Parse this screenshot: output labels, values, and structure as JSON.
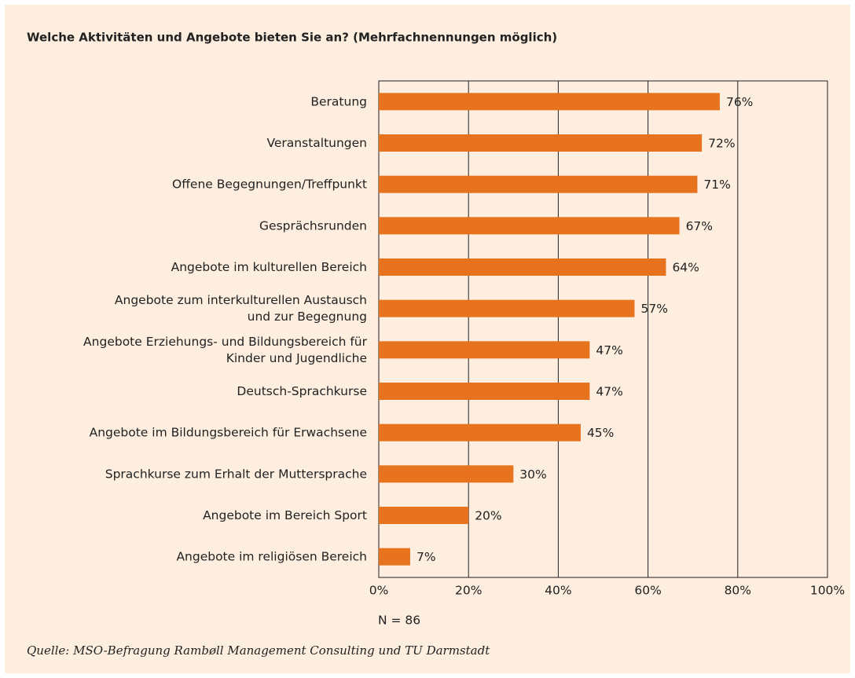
{
  "chart_data": {
    "type": "bar",
    "orientation": "horizontal",
    "title": "Welche Aktivitäten und Angebote bieten Sie an? (Mehrfachnennungen möglich)",
    "categories": [
      "Beratung",
      "Veranstaltungen",
      "Offene Begegnungen/Treffpunkt",
      "Gesprächsrunden",
      "Angebote im kulturellen Bereich",
      "Angebote zum interkulturellen Austausch\nund zur Begegnung",
      "Angebote Erziehungs- und Bildungsbereich für\nKinder und Jugendliche",
      "Deutsch-Sprachkurse",
      "Angebote im Bildungsbereich für Erwachsene",
      "Sprachkurse zum Erhalt der Muttersprache",
      "Angebote im Bereich Sport",
      "Angebote im religiösen Bereich"
    ],
    "values": [
      76,
      72,
      71,
      67,
      64,
      57,
      47,
      47,
      45,
      30,
      20,
      7
    ],
    "value_labels": [
      "76%",
      "72%",
      "71%",
      "67%",
      "64%",
      "57%",
      "47%",
      "47%",
      "45%",
      "30%",
      "20%",
      "7%"
    ],
    "color": "#e8731f",
    "xlim": [
      0,
      100
    ],
    "xticks": [
      {
        "value": 0,
        "label": "0%"
      },
      {
        "value": 20,
        "label": "20%"
      },
      {
        "value": 40,
        "label": "40%"
      },
      {
        "value": 60,
        "label": "60%"
      },
      {
        "value": 80,
        "label": "80%"
      },
      {
        "value": 100,
        "label": "100%"
      }
    ],
    "grid": true,
    "note": "N = 86",
    "source": "Quelle: MSO-Befragung Rambøll Management Consulting und TU Darmstadt"
  }
}
